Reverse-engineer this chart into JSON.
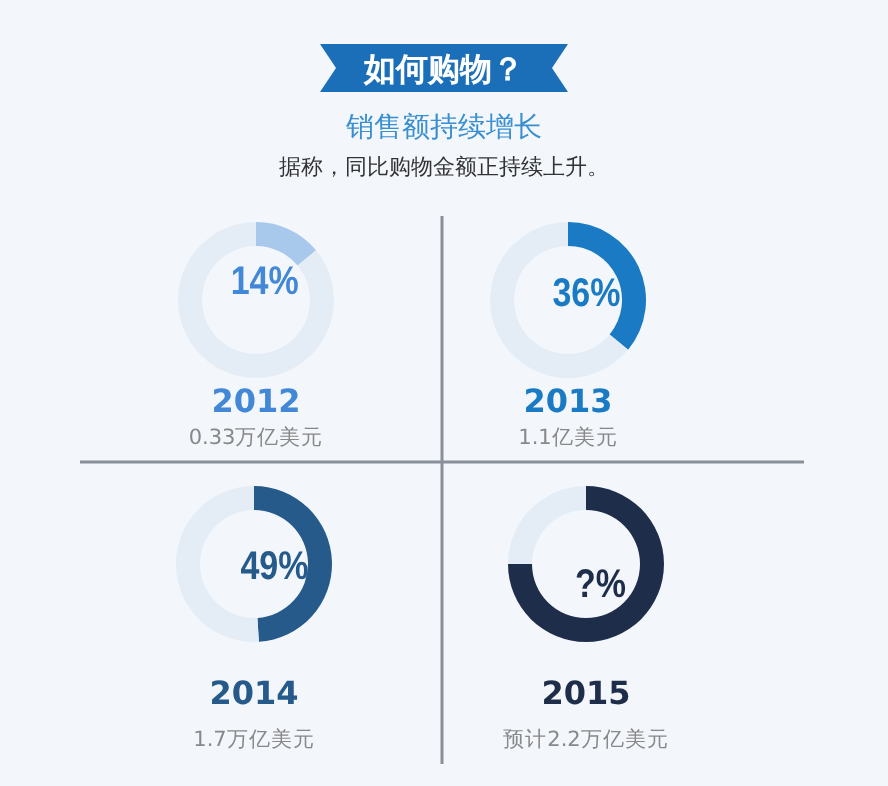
{
  "chart_data": [
    {
      "type": "other",
      "title": "如何购物？",
      "subtitle": "销售额持续增长",
      "annotations": [
        "据称，同比购物金额正持续上升。"
      ]
    },
    {
      "type": "donut",
      "title": "2012",
      "subtitle": "0.33万亿美元",
      "categories": [
        null,
        null
      ],
      "values": [
        14,
        86
      ],
      "colors": [
        "#a8c8ec",
        "#e4ecf6"
      ],
      "value_labels": [
        "14%",
        null
      ]
    },
    {
      "type": "donut",
      "title": "2013",
      "subtitle": "1.1亿美元",
      "categories": [
        null,
        null
      ],
      "values": [
        36,
        64
      ],
      "colors": [
        "#1a7bc4",
        "#e4ecf6"
      ],
      "value_labels": [
        "36%",
        null
      ]
    },
    {
      "type": "donut",
      "title": "2014",
      "subtitle": "1.7万亿美元",
      "categories": [
        null,
        null
      ],
      "values": [
        49,
        51
      ],
      "colors": [
        "#255a8a",
        "#e4ecf6"
      ],
      "value_labels": [
        "49%",
        null
      ]
    },
    {
      "type": "donut",
      "title": "2015",
      "subtitle": "预计2.2万亿美元",
      "categories": [
        null,
        null
      ],
      "values": [
        75,
        25
      ],
      "colors": [
        "#1e2d4a",
        "#e4ecf6"
      ],
      "value_labels": [
        "?%",
        null
      ]
    }
  ]
}
